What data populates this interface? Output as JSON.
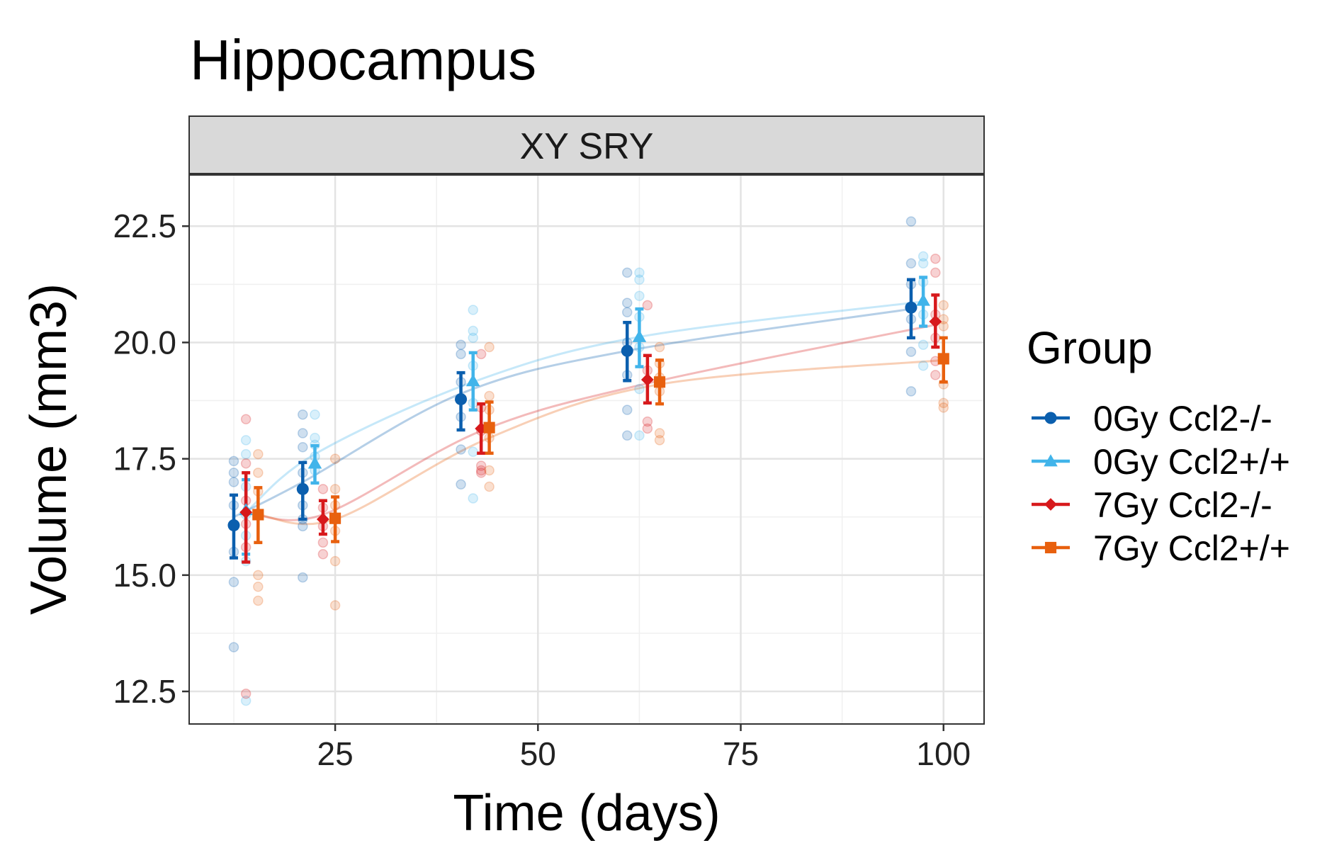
{
  "chart_data": {
    "type": "line",
    "title": "Hippocampus",
    "facet_label": "XY SRY",
    "xlabel": "Time (days)",
    "ylabel": "Volume (mm3)",
    "xlim": [
      7,
      105
    ],
    "ylim": [
      11.8,
      23.6
    ],
    "xticks": [
      25,
      50,
      75,
      100
    ],
    "xtick_labels": [
      "25",
      "50",
      "75",
      "100"
    ],
    "yticks": [
      12.5,
      15.0,
      17.5,
      20.0,
      22.5
    ],
    "ytick_labels": [
      "12.5",
      "15.0",
      "17.5",
      "20.0",
      "22.5"
    ],
    "grid": true,
    "legend": {
      "title": "Group",
      "position": "right"
    },
    "series": [
      {
        "name": "0Gy Ccl2-/-",
        "color": "#0b5fae",
        "marker": "circle",
        "x": [
          12.5,
          21,
          40.5,
          61,
          96
        ],
        "mean": [
          16.07,
          16.85,
          18.78,
          19.82,
          20.75
        ],
        "err_low": [
          15.37,
          16.2,
          18.12,
          19.18,
          20.1
        ],
        "err_high": [
          16.72,
          17.42,
          19.35,
          20.43,
          21.35
        ],
        "fit": [
          [
            12.5,
            16.25
          ],
          [
            21,
            17.0
          ],
          [
            40.5,
            18.9
          ],
          [
            61,
            19.82
          ],
          [
            96,
            20.72
          ]
        ],
        "points": [
          [
            12.5,
            17.45
          ],
          [
            12.5,
            17.2
          ],
          [
            12.5,
            17.0
          ],
          [
            12.5,
            16.5
          ],
          [
            12.5,
            16.1
          ],
          [
            12.5,
            15.5
          ],
          [
            12.5,
            14.85
          ],
          [
            12.5,
            13.45
          ],
          [
            21,
            18.45
          ],
          [
            21,
            18.05
          ],
          [
            21,
            17.75
          ],
          [
            21,
            17.2
          ],
          [
            21,
            16.5
          ],
          [
            21,
            16.2
          ],
          [
            21,
            16.05
          ],
          [
            21,
            14.95
          ],
          [
            40.5,
            19.95
          ],
          [
            40.5,
            19.75
          ],
          [
            40.5,
            19.15
          ],
          [
            40.5,
            18.8
          ],
          [
            40.5,
            18.4
          ],
          [
            40.5,
            17.7
          ],
          [
            40.5,
            16.95
          ],
          [
            61,
            21.5
          ],
          [
            61,
            20.85
          ],
          [
            61,
            20.65
          ],
          [
            61,
            20.0
          ],
          [
            61,
            19.3
          ],
          [
            61,
            18.55
          ],
          [
            61,
            18.0
          ],
          [
            96,
            22.6
          ],
          [
            96,
            21.7
          ],
          [
            96,
            21.25
          ],
          [
            96,
            20.5
          ],
          [
            96,
            19.8
          ],
          [
            96,
            18.95
          ]
        ]
      },
      {
        "name": "0Gy Ccl2+/+",
        "color": "#41b4ea",
        "marker": "triangle",
        "x": [
          14,
          22.5,
          42,
          62.5,
          97.5
        ],
        "mean": [
          16.4,
          17.4,
          19.17,
          20.12,
          20.9
        ],
        "err_low": [
          15.45,
          16.98,
          18.55,
          19.48,
          20.35
        ],
        "err_high": [
          17.05,
          17.78,
          19.78,
          20.72,
          21.4
        ],
        "fit": [
          [
            14,
            16.35
          ],
          [
            22.5,
            17.6
          ],
          [
            42,
            19.15
          ],
          [
            62.5,
            20.12
          ],
          [
            97.5,
            20.88
          ]
        ],
        "points": [
          [
            14,
            17.9
          ],
          [
            14,
            17.6
          ],
          [
            14,
            16.9
          ],
          [
            14,
            16.3
          ],
          [
            14,
            15.85
          ],
          [
            14,
            15.3
          ],
          [
            14,
            12.3
          ],
          [
            22.5,
            18.45
          ],
          [
            22.5,
            17.95
          ],
          [
            22.5,
            17.8
          ],
          [
            22.5,
            17.55
          ],
          [
            22.5,
            17.25
          ],
          [
            42,
            20.7
          ],
          [
            42,
            20.25
          ],
          [
            42,
            20.1
          ],
          [
            42,
            19.5
          ],
          [
            42,
            18.7
          ],
          [
            42,
            17.65
          ],
          [
            42,
            16.65
          ],
          [
            62.5,
            21.5
          ],
          [
            62.5,
            21.35
          ],
          [
            62.5,
            21.0
          ],
          [
            62.5,
            20.55
          ],
          [
            62.5,
            19.9
          ],
          [
            62.5,
            19.0
          ],
          [
            62.5,
            18.0
          ],
          [
            97.5,
            21.85
          ],
          [
            97.5,
            21.7
          ],
          [
            97.5,
            21.3
          ],
          [
            97.5,
            20.6
          ],
          [
            97.5,
            19.95
          ],
          [
            97.5,
            19.5
          ]
        ]
      },
      {
        "name": "7Gy Ccl2-/-",
        "color": "#d7191c",
        "marker": "diamond",
        "x": [
          14,
          23.5,
          43,
          63.5,
          99
        ],
        "mean": [
          16.35,
          16.2,
          18.15,
          19.2,
          20.45
        ],
        "err_low": [
          15.28,
          15.88,
          17.62,
          18.7,
          19.9
        ],
        "err_high": [
          17.2,
          16.6,
          18.68,
          19.72,
          21.02
        ],
        "fit": [
          [
            14,
            16.35
          ],
          [
            23.5,
            16.3
          ],
          [
            43,
            18.1
          ],
          [
            63.5,
            19.12
          ],
          [
            99,
            20.38
          ]
        ],
        "points": [
          [
            14,
            18.35
          ],
          [
            14,
            17.4
          ],
          [
            14,
            16.6
          ],
          [
            14,
            16.1
          ],
          [
            14,
            15.6
          ],
          [
            14,
            12.45
          ],
          [
            23.5,
            16.85
          ],
          [
            23.5,
            16.45
          ],
          [
            23.5,
            16.05
          ],
          [
            23.5,
            15.7
          ],
          [
            23.5,
            15.45
          ],
          [
            43,
            19.75
          ],
          [
            43,
            18.6
          ],
          [
            43,
            18.1
          ],
          [
            43,
            17.35
          ],
          [
            43,
            17.25
          ],
          [
            43,
            17.2
          ],
          [
            63.5,
            20.8
          ],
          [
            63.5,
            19.4
          ],
          [
            63.5,
            18.3
          ],
          [
            63.5,
            18.15
          ],
          [
            99,
            21.8
          ],
          [
            99,
            21.5
          ],
          [
            99,
            20.6
          ],
          [
            99,
            20.1
          ],
          [
            99,
            19.6
          ],
          [
            99,
            19.3
          ]
        ]
      },
      {
        "name": "7Gy Ccl2+/+",
        "color": "#e8600e",
        "marker": "square",
        "x": [
          15.5,
          25,
          44,
          65,
          100
        ],
        "mean": [
          16.3,
          16.22,
          18.17,
          19.15,
          19.65
        ],
        "err_low": [
          15.7,
          15.72,
          17.62,
          18.68,
          19.15
        ],
        "err_high": [
          16.88,
          16.68,
          18.72,
          19.62,
          20.1
        ],
        "fit": [
          [
            15.5,
            16.3
          ],
          [
            25,
            16.2
          ],
          [
            44,
            17.95
          ],
          [
            65,
            19.1
          ],
          [
            100,
            19.62
          ]
        ],
        "points": [
          [
            15.5,
            17.6
          ],
          [
            15.5,
            17.2
          ],
          [
            15.5,
            16.8
          ],
          [
            15.5,
            16.3
          ],
          [
            15.5,
            15.0
          ],
          [
            15.5,
            14.75
          ],
          [
            15.5,
            14.45
          ],
          [
            25,
            17.5
          ],
          [
            25,
            16.85
          ],
          [
            25,
            16.5
          ],
          [
            25,
            15.95
          ],
          [
            25,
            15.3
          ],
          [
            25,
            14.35
          ],
          [
            44,
            19.9
          ],
          [
            44,
            18.85
          ],
          [
            44,
            18.55
          ],
          [
            44,
            17.95
          ],
          [
            44,
            17.25
          ],
          [
            44,
            16.9
          ],
          [
            65,
            19.9
          ],
          [
            65,
            19.55
          ],
          [
            65,
            19.25
          ],
          [
            65,
            18.95
          ],
          [
            65,
            18.05
          ],
          [
            65,
            17.9
          ],
          [
            100,
            20.8
          ],
          [
            100,
            20.5
          ],
          [
            100,
            20.35
          ],
          [
            100,
            19.1
          ],
          [
            100,
            18.7
          ],
          [
            100,
            18.6
          ]
        ]
      }
    ]
  }
}
